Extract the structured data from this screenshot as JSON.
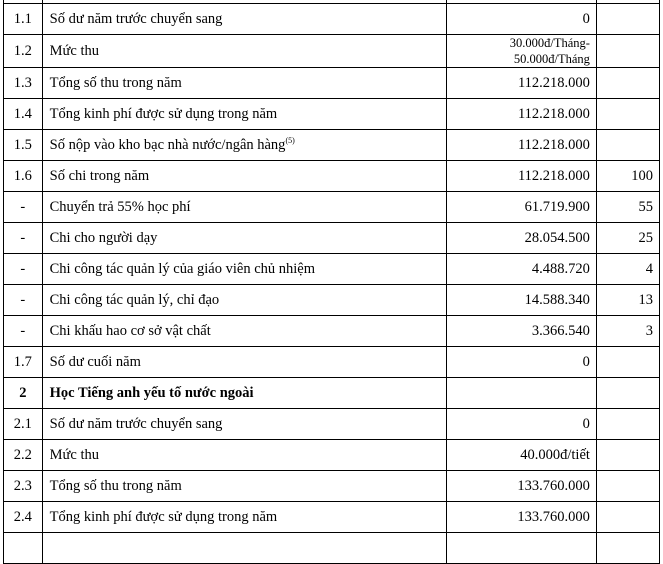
{
  "rows": [
    {
      "no": "",
      "content": "",
      "amount": "",
      "percent": "(…)"
    },
    {
      "no": "1.1",
      "content": "Số dư năm trước chuyển sang",
      "amount": "0",
      "percent": ""
    },
    {
      "no": "1.2",
      "content": "Mức thu",
      "amount": "30.000đ/Tháng-",
      "amount2": "50.000đ/Tháng",
      "percent": ""
    },
    {
      "no": "1.3",
      "content": "Tổng số thu trong năm",
      "amount": "112.218.000",
      "percent": ""
    },
    {
      "no": "1.4",
      "content": "Tổng kinh phí được sử dụng trong năm",
      "amount": "112.218.000",
      "percent": ""
    },
    {
      "no": "1.5",
      "content": "Số nộp vào kho bạc nhà nước/ngân hàng",
      "sup": "(5)",
      "amount": "112.218.000",
      "percent": ""
    },
    {
      "no": "1.6",
      "content": "Số chi trong năm",
      "amount": "112.218.000",
      "percent": "100"
    },
    {
      "no": "-",
      "content": "Chuyển trả 55% học phí",
      "amount": "61.719.900",
      "percent": "55"
    },
    {
      "no": "-",
      "content": "Chi cho người dạy",
      "amount": "28.054.500",
      "percent": "25"
    },
    {
      "no": "-",
      "content": "Chi công tác quản lý của giáo viên chủ nhiệm",
      "amount": "4.488.720",
      "percent": "4"
    },
    {
      "no": "-",
      "content": "Chi công tác quản lý, chỉ đạo",
      "amount": "14.588.340",
      "percent": "13"
    },
    {
      "no": "-",
      "content": "Chi khấu hao cơ sở vật chất",
      "amount": "3.366.540",
      "percent": "3"
    },
    {
      "no": "1.7",
      "content": "Số dư cuối năm",
      "amount": "0",
      "percent": ""
    },
    {
      "no": "2",
      "content": "Học Tiếng anh yếu tố nước ngoài",
      "amount": "",
      "percent": "",
      "bold": true
    },
    {
      "no": "2.1",
      "content": "Số dư năm trước chuyển sang",
      "amount": "0",
      "percent": ""
    },
    {
      "no": "2.2",
      "content": "Mức thu",
      "amount": "40.000đ/tiết",
      "percent": ""
    },
    {
      "no": "2.3",
      "content": "Tổng số thu trong năm",
      "amount": "133.760.000",
      "percent": ""
    },
    {
      "no": "2.4",
      "content": "Tổng kinh phí được sử dụng trong năm",
      "amount": "133.760.000",
      "percent": ""
    },
    {
      "no": "",
      "content": "",
      "amount": "",
      "percent": ""
    }
  ]
}
